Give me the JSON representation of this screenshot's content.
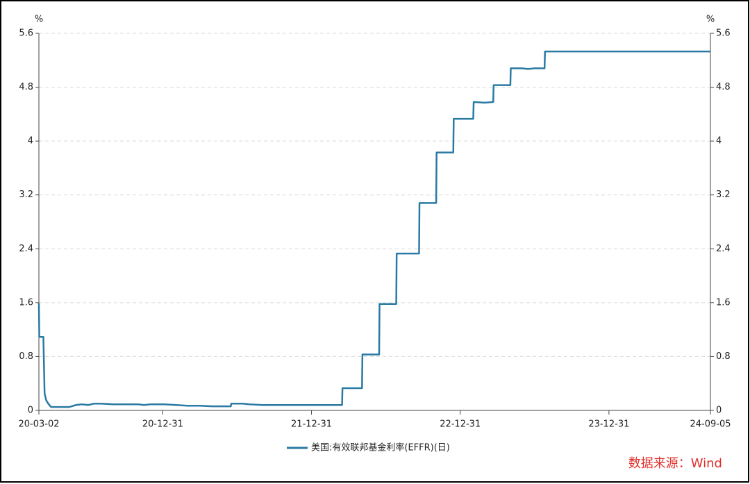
{
  "chart_data": {
    "type": "line",
    "y_unit": "%",
    "y2_unit": "%",
    "xlim": [
      "20-03-02",
      "24-09-05"
    ],
    "xticks": [
      "20-03-02",
      "20-12-31",
      "21-12-31",
      "22-12-31",
      "23-12-31",
      "24-09-05"
    ],
    "ylim": [
      0,
      5.6
    ],
    "yticks": [
      0,
      0.8,
      1.6,
      2.4,
      3.2,
      4,
      4.8,
      5.6
    ],
    "y2lim": [
      0,
      5.6
    ],
    "y2ticks": [
      0,
      0.8,
      1.6,
      2.4,
      3.2,
      4,
      4.8,
      5.6
    ],
    "grid": true,
    "x": [
      "20-03-02",
      "20-03-03",
      "20-03-13",
      "20-03-16",
      "20-03-20",
      "20-03-25",
      "20-04-01",
      "20-05-01",
      "20-05-15",
      "20-06-01",
      "20-06-15",
      "20-07-01",
      "20-07-15",
      "20-08-01",
      "20-09-01",
      "20-10-01",
      "20-11-01",
      "20-11-15",
      "20-12-01",
      "21-01-04",
      "21-02-01",
      "21-03-01",
      "21-04-01",
      "21-05-01",
      "21-06-16",
      "21-06-17",
      "21-07-15",
      "21-08-01",
      "21-09-01",
      "21-10-01",
      "21-11-01",
      "21-12-01",
      "22-01-03",
      "22-03-16",
      "22-03-17",
      "22-05-04",
      "22-05-05",
      "22-06-15",
      "22-06-16",
      "22-07-27",
      "22-07-28",
      "22-09-21",
      "22-09-22",
      "22-11-02",
      "22-11-03",
      "22-12-14",
      "22-12-15",
      "23-02-01",
      "23-02-02",
      "23-03-01",
      "23-03-22",
      "23-03-23",
      "23-05-03",
      "23-05-04",
      "23-06-01",
      "23-06-15",
      "23-07-01",
      "23-07-26",
      "23-07-27",
      "24-09-05"
    ],
    "series": [
      {
        "name": "美国:有效联邦基金利率(EFFR)(日)",
        "color": "#2a7aa3",
        "values": [
          1.59,
          1.09,
          1.09,
          0.25,
          0.15,
          0.1,
          0.05,
          0.05,
          0.05,
          0.08,
          0.09,
          0.08,
          0.1,
          0.1,
          0.09,
          0.09,
          0.09,
          0.08,
          0.09,
          0.09,
          0.08,
          0.07,
          0.07,
          0.06,
          0.06,
          0.1,
          0.1,
          0.09,
          0.08,
          0.08,
          0.08,
          0.08,
          0.08,
          0.08,
          0.33,
          0.33,
          0.83,
          0.83,
          1.58,
          1.58,
          2.33,
          2.33,
          3.08,
          3.08,
          3.83,
          3.83,
          4.33,
          4.33,
          4.58,
          4.57,
          4.58,
          4.83,
          4.83,
          5.08,
          5.08,
          5.07,
          5.08,
          5.08,
          5.33,
          5.33
        ]
      }
    ],
    "legend": "bottom",
    "source": "数据来源：Wind"
  }
}
